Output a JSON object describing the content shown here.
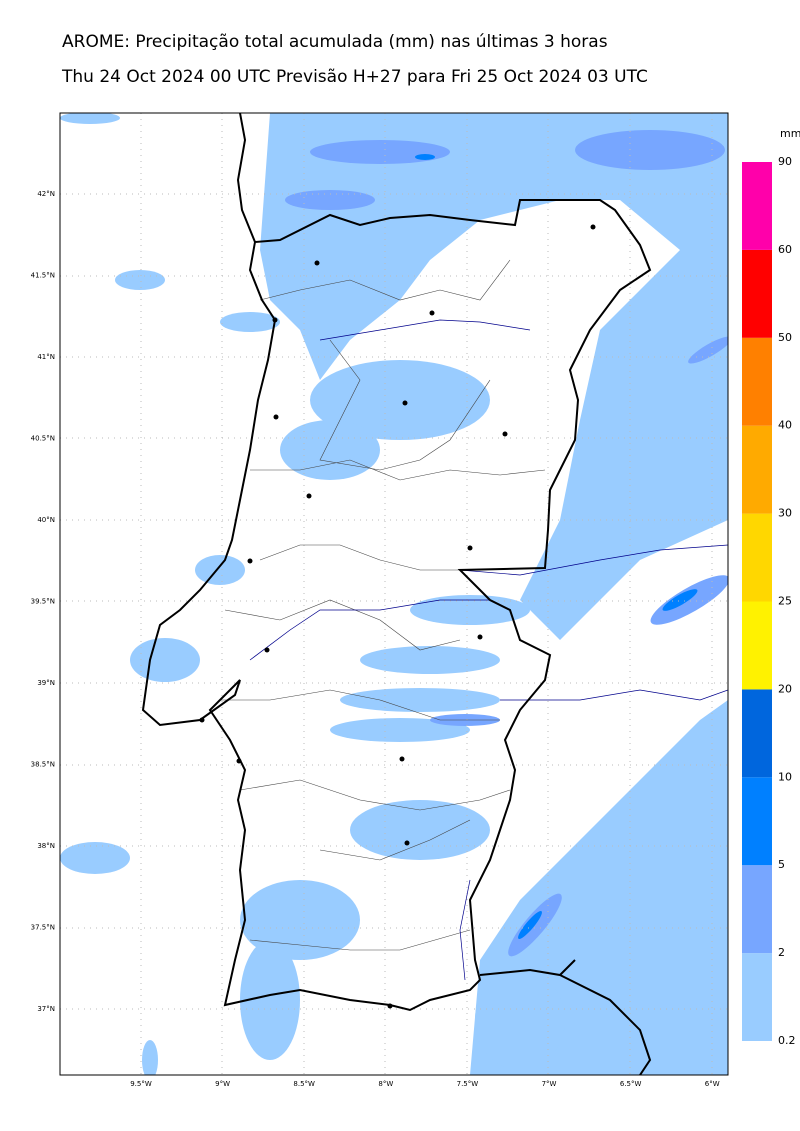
{
  "header": {
    "title": "AROME: Precipitação total acumulada (mm) nas últimas 3 horas",
    "subtitle": "Thu 24 Oct 2024 00 UTC Previsão H+27 para Fri 25 Oct 2024 03 UTC"
  },
  "map": {
    "lat_labels": [
      "42°N",
      "41.5°N",
      "41°N",
      "40.5°N",
      "40°N",
      "39.5°N",
      "39°N",
      "38.5°N",
      "38°N",
      "37.5°N",
      "37°N"
    ],
    "lon_labels": [
      "9.5°W",
      "9°W",
      "8.5°W",
      "8°W",
      "7.5°W",
      "7°W",
      "6.5°W",
      "6°W"
    ]
  },
  "colorbar": {
    "unit": "mm",
    "labels": [
      "0.2",
      "2",
      "5",
      "10",
      "20",
      "25",
      "30",
      "40",
      "50",
      "60",
      "90"
    ],
    "colors": [
      "#99ccff",
      "#77a6ff",
      "#0080ff",
      "#0066dd",
      "#fff200",
      "#ffd700",
      "#ffaa00",
      "#ff8000",
      "#ff0000",
      "#ff00aa"
    ]
  }
}
